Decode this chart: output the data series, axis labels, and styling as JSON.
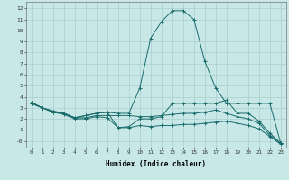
{
  "xlabel": "Humidex (Indice chaleur)",
  "ylabel": "",
  "background_color": "#c8e8e8",
  "grid_color": "#aacece",
  "line_color": "#1a6b6b",
  "xlim": [
    -0.5,
    23.5
  ],
  "ylim": [
    -0.6,
    12.6
  ],
  "xticks": [
    0,
    1,
    2,
    3,
    4,
    5,
    6,
    7,
    8,
    9,
    10,
    11,
    12,
    13,
    14,
    15,
    16,
    17,
    18,
    19,
    20,
    21,
    22,
    23
  ],
  "yticks": [
    0,
    1,
    2,
    3,
    4,
    5,
    6,
    7,
    8,
    9,
    10,
    11,
    12
  ],
  "lines": [
    {
      "x": [
        0,
        1,
        2,
        3,
        4,
        5,
        6,
        7,
        8,
        9,
        10,
        11,
        12,
        13,
        14,
        15,
        16,
        17,
        18,
        19,
        20,
        21,
        22,
        23
      ],
      "y": [
        3.5,
        3.0,
        2.7,
        2.5,
        2.1,
        2.3,
        2.5,
        2.6,
        2.5,
        2.5,
        4.8,
        9.3,
        10.8,
        11.8,
        11.8,
        11.0,
        7.2,
        4.8,
        3.4,
        3.4,
        3.4,
        3.4,
        3.4,
        -0.2
      ]
    },
    {
      "x": [
        0,
        1,
        2,
        3,
        4,
        5,
        6,
        7,
        8,
        9,
        10,
        11,
        12,
        13,
        14,
        15,
        16,
        17,
        18,
        19,
        20,
        21,
        22,
        23
      ],
      "y": [
        3.5,
        3.0,
        2.7,
        2.5,
        2.1,
        2.3,
        2.5,
        2.6,
        1.2,
        1.3,
        2.0,
        2.0,
        2.2,
        3.4,
        3.4,
        3.4,
        3.4,
        3.4,
        3.7,
        2.5,
        2.5,
        1.8,
        0.7,
        -0.2
      ]
    },
    {
      "x": [
        0,
        1,
        2,
        3,
        4,
        5,
        6,
        7,
        8,
        9,
        10,
        11,
        12,
        13,
        14,
        15,
        16,
        17,
        18,
        19,
        20,
        21,
        22,
        23
      ],
      "y": [
        3.4,
        3.0,
        2.6,
        2.5,
        2.1,
        2.1,
        2.3,
        2.3,
        2.3,
        2.3,
        2.2,
        2.2,
        2.3,
        2.4,
        2.5,
        2.5,
        2.6,
        2.8,
        2.5,
        2.2,
        2.0,
        1.6,
        0.5,
        -0.2
      ]
    },
    {
      "x": [
        0,
        1,
        2,
        3,
        4,
        5,
        6,
        7,
        8,
        9,
        10,
        11,
        12,
        13,
        14,
        15,
        16,
        17,
        18,
        19,
        20,
        21,
        22,
        23
      ],
      "y": [
        3.4,
        3.0,
        2.6,
        2.4,
        2.0,
        2.0,
        2.2,
        2.1,
        1.2,
        1.2,
        1.4,
        1.3,
        1.4,
        1.4,
        1.5,
        1.5,
        1.6,
        1.7,
        1.8,
        1.6,
        1.4,
        1.1,
        0.4,
        -0.3
      ]
    }
  ]
}
